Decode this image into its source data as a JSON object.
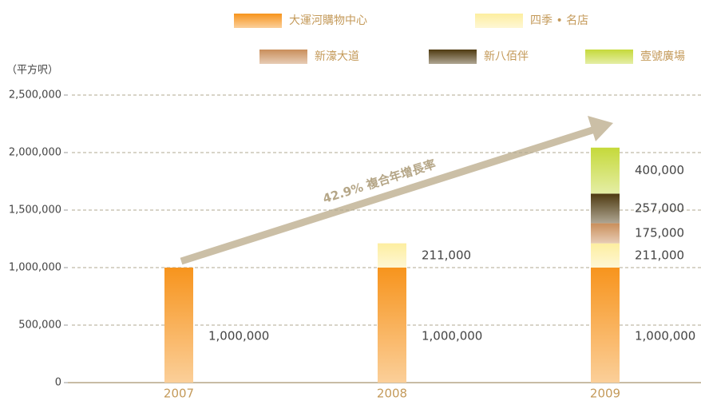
{
  "chart_data": {
    "type": "stacked_bar",
    "y_axis_label": "（平方呎）",
    "annotation": "42.9% 複合年增長率",
    "categories": [
      "2007",
      "2008",
      "2009"
    ],
    "series": [
      {
        "name": "大運河購物中心",
        "color": "#f7941d",
        "values": [
          1000000,
          1000000,
          1000000
        ],
        "value_labels": [
          "1,000,000",
          "1,000,000",
          "1,000,000"
        ]
      },
      {
        "name": "四季 • 名店",
        "color": "#fdeea0",
        "values": [
          null,
          211000,
          211000
        ],
        "value_labels": [
          null,
          "211,000",
          "211,000"
        ]
      },
      {
        "name": "新濠大道",
        "color": "#c98e5a",
        "values": [
          null,
          null,
          175000
        ],
        "value_labels": [
          null,
          null,
          "175,000"
        ]
      },
      {
        "name": "新八佰伴",
        "color": "#4e3a10",
        "values": [
          null,
          null,
          257000
        ],
        "value_labels": [
          null,
          null,
          "257,000"
        ]
      },
      {
        "name": "壹號廣場",
        "color": "#c5d93a",
        "values": [
          null,
          null,
          400000
        ],
        "value_labels": [
          null,
          null,
          "400,000"
        ]
      }
    ],
    "ylim": [
      0,
      2500000
    ],
    "yticks": [
      0,
      {
        "value": 500000,
        "label": "500,000"
      },
      {
        "value": 1000000,
        "label": "1,000,000"
      },
      {
        "value": 1500000,
        "label": "1,500,000"
      },
      {
        "value": 2000000,
        "label": "2,000,000"
      },
      {
        "value": 2500000,
        "label": "2,500,000"
      }
    ],
    "grid": true
  }
}
